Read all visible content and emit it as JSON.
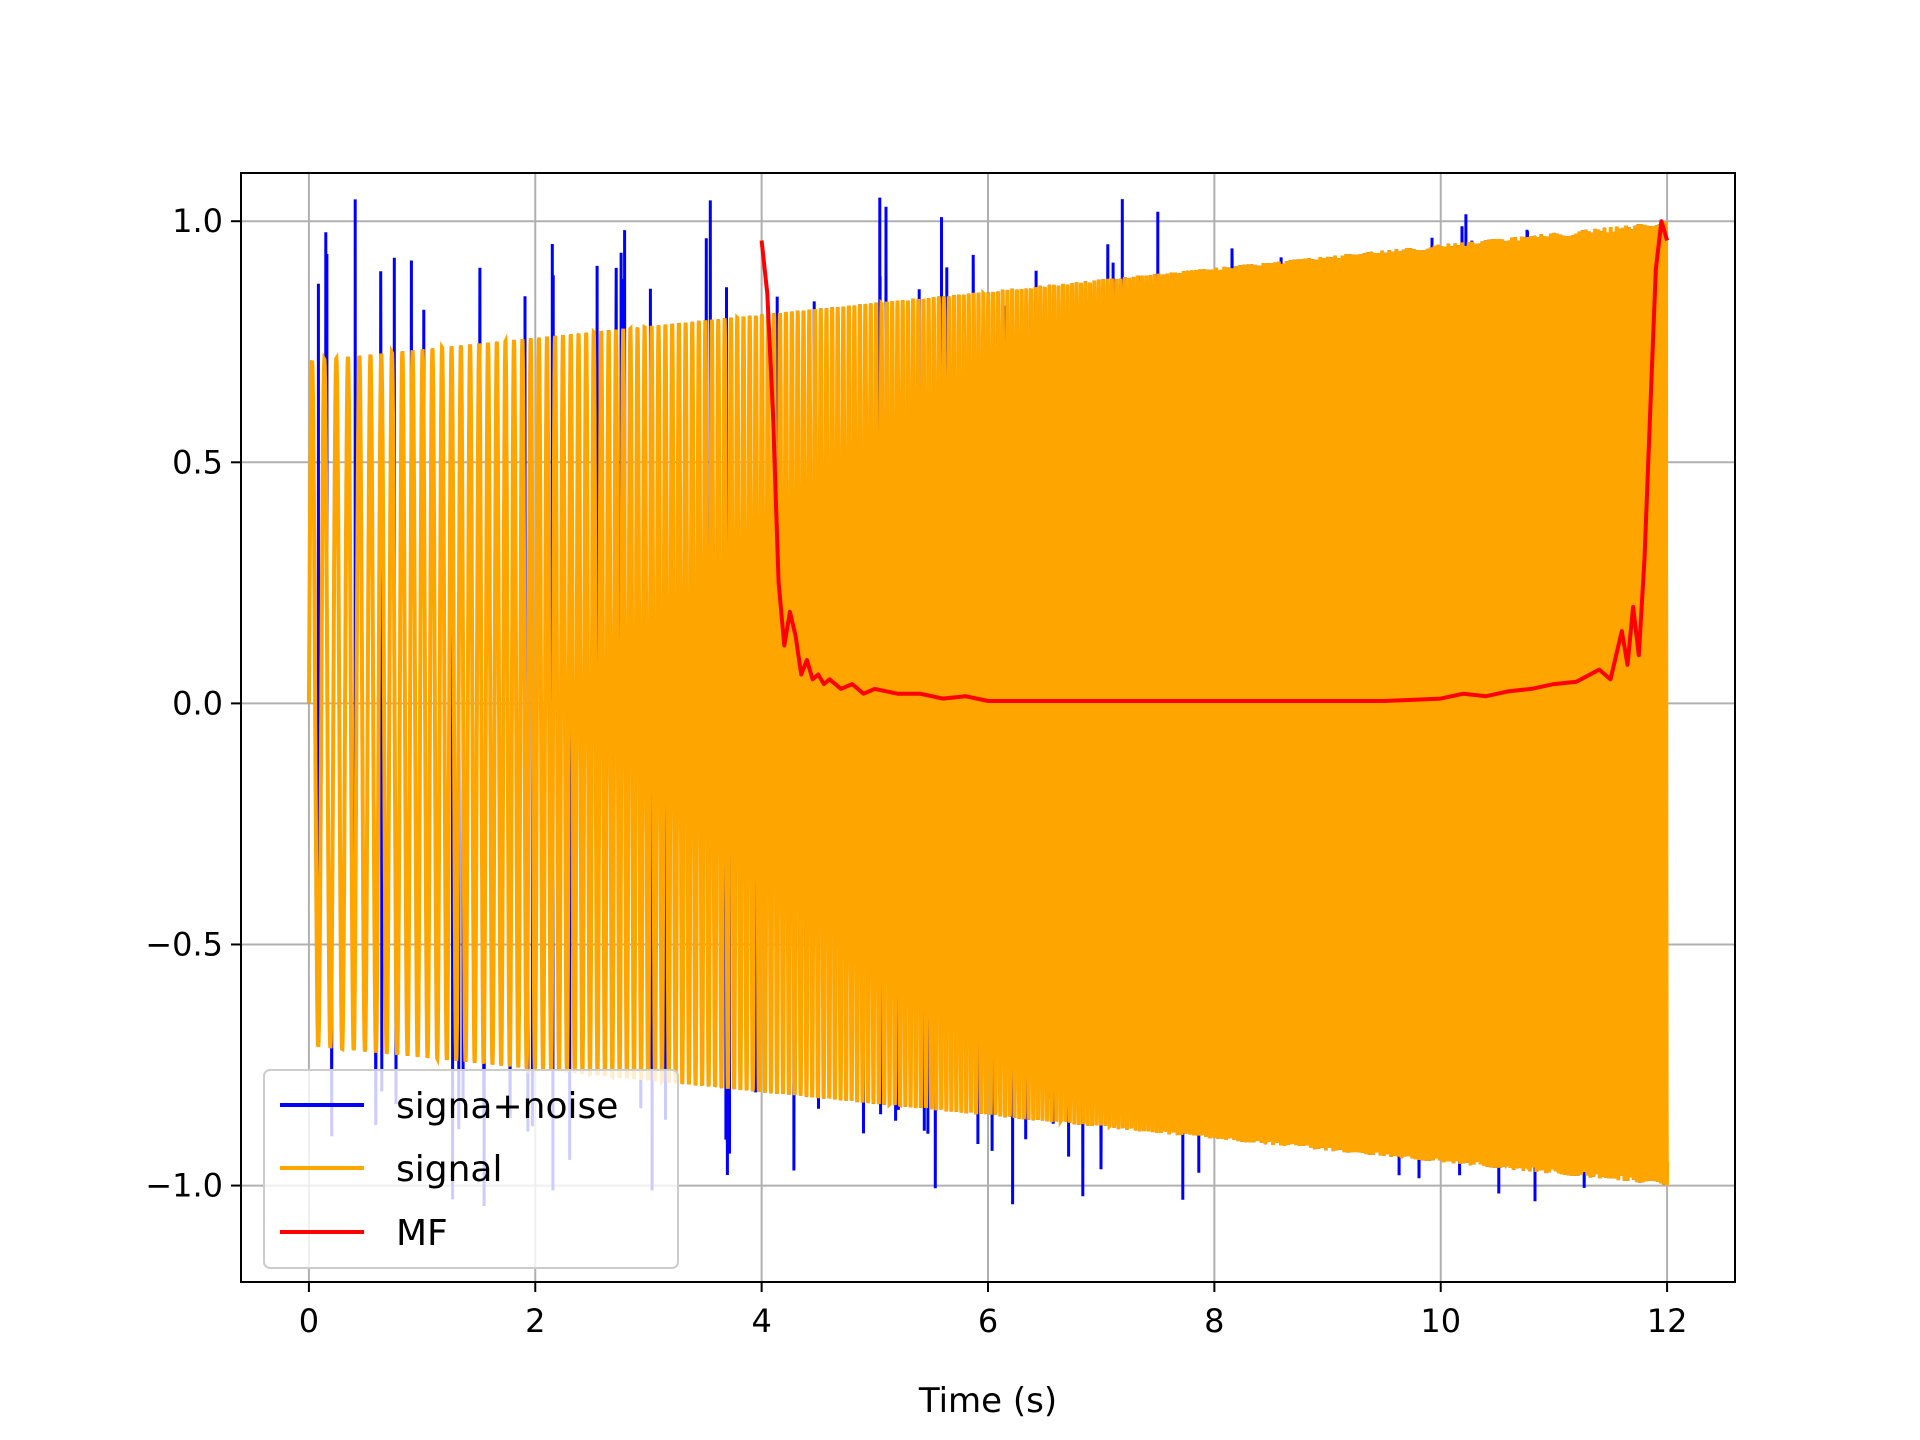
{
  "chart_data": {
    "type": "line",
    "xlabel": "Time (s)",
    "ylabel": "",
    "xlim": [
      -0.6,
      12.6
    ],
    "ylim": [
      -1.2,
      1.1
    ],
    "xticks": [
      0,
      2,
      4,
      6,
      8,
      10,
      12
    ],
    "yticks": [
      -1.0,
      -0.5,
      0.0,
      0.5,
      1.0
    ],
    "xtick_labels": [
      "0",
      "2",
      "4",
      "6",
      "8",
      "10",
      "12"
    ],
    "ytick_labels": [
      "−1.0",
      "−0.5",
      "0.0",
      "0.5",
      "1.0"
    ],
    "grid": true,
    "legend_position": "lower-left",
    "series": [
      {
        "name": "signa+noise",
        "color": "#0000ff",
        "description_points": {
          "x_start": 0,
          "x_end": 12,
          "envelope": "chirp with impulsive noise spikes reaching about 1.0 and -1.08"
        }
      },
      {
        "name": "signal",
        "color": "#ffa500",
        "envelope_start": 0.71,
        "envelope_end": 1.0,
        "x_start": 0,
        "x_end": 12
      },
      {
        "name": "MF",
        "color": "#ff0000",
        "x": [
          4.0,
          4.05,
          4.1,
          4.15,
          4.2,
          4.25,
          4.3,
          4.35,
          4.4,
          4.45,
          4.5,
          4.55,
          4.6,
          4.7,
          4.8,
          4.9,
          5.0,
          5.2,
          5.4,
          5.6,
          5.8,
          6.0,
          6.5,
          7.0,
          7.5,
          8.0,
          8.5,
          9.0,
          9.5,
          10.0,
          10.2,
          10.4,
          10.6,
          10.8,
          11.0,
          11.2,
          11.4,
          11.5,
          11.6,
          11.65,
          11.7,
          11.75,
          11.8,
          11.85,
          11.9,
          11.95,
          12.0
        ],
        "values": [
          0.96,
          0.85,
          0.6,
          0.25,
          0.12,
          0.19,
          0.14,
          0.06,
          0.09,
          0.05,
          0.06,
          0.04,
          0.05,
          0.03,
          0.04,
          0.02,
          0.03,
          0.02,
          0.02,
          0.01,
          0.015,
          0.005,
          0.005,
          0.005,
          0.005,
          0.005,
          0.005,
          0.005,
          0.005,
          0.01,
          0.02,
          0.015,
          0.025,
          0.03,
          0.04,
          0.045,
          0.07,
          0.05,
          0.15,
          0.08,
          0.2,
          0.1,
          0.3,
          0.6,
          0.9,
          1.0,
          0.96
        ]
      }
    ]
  }
}
